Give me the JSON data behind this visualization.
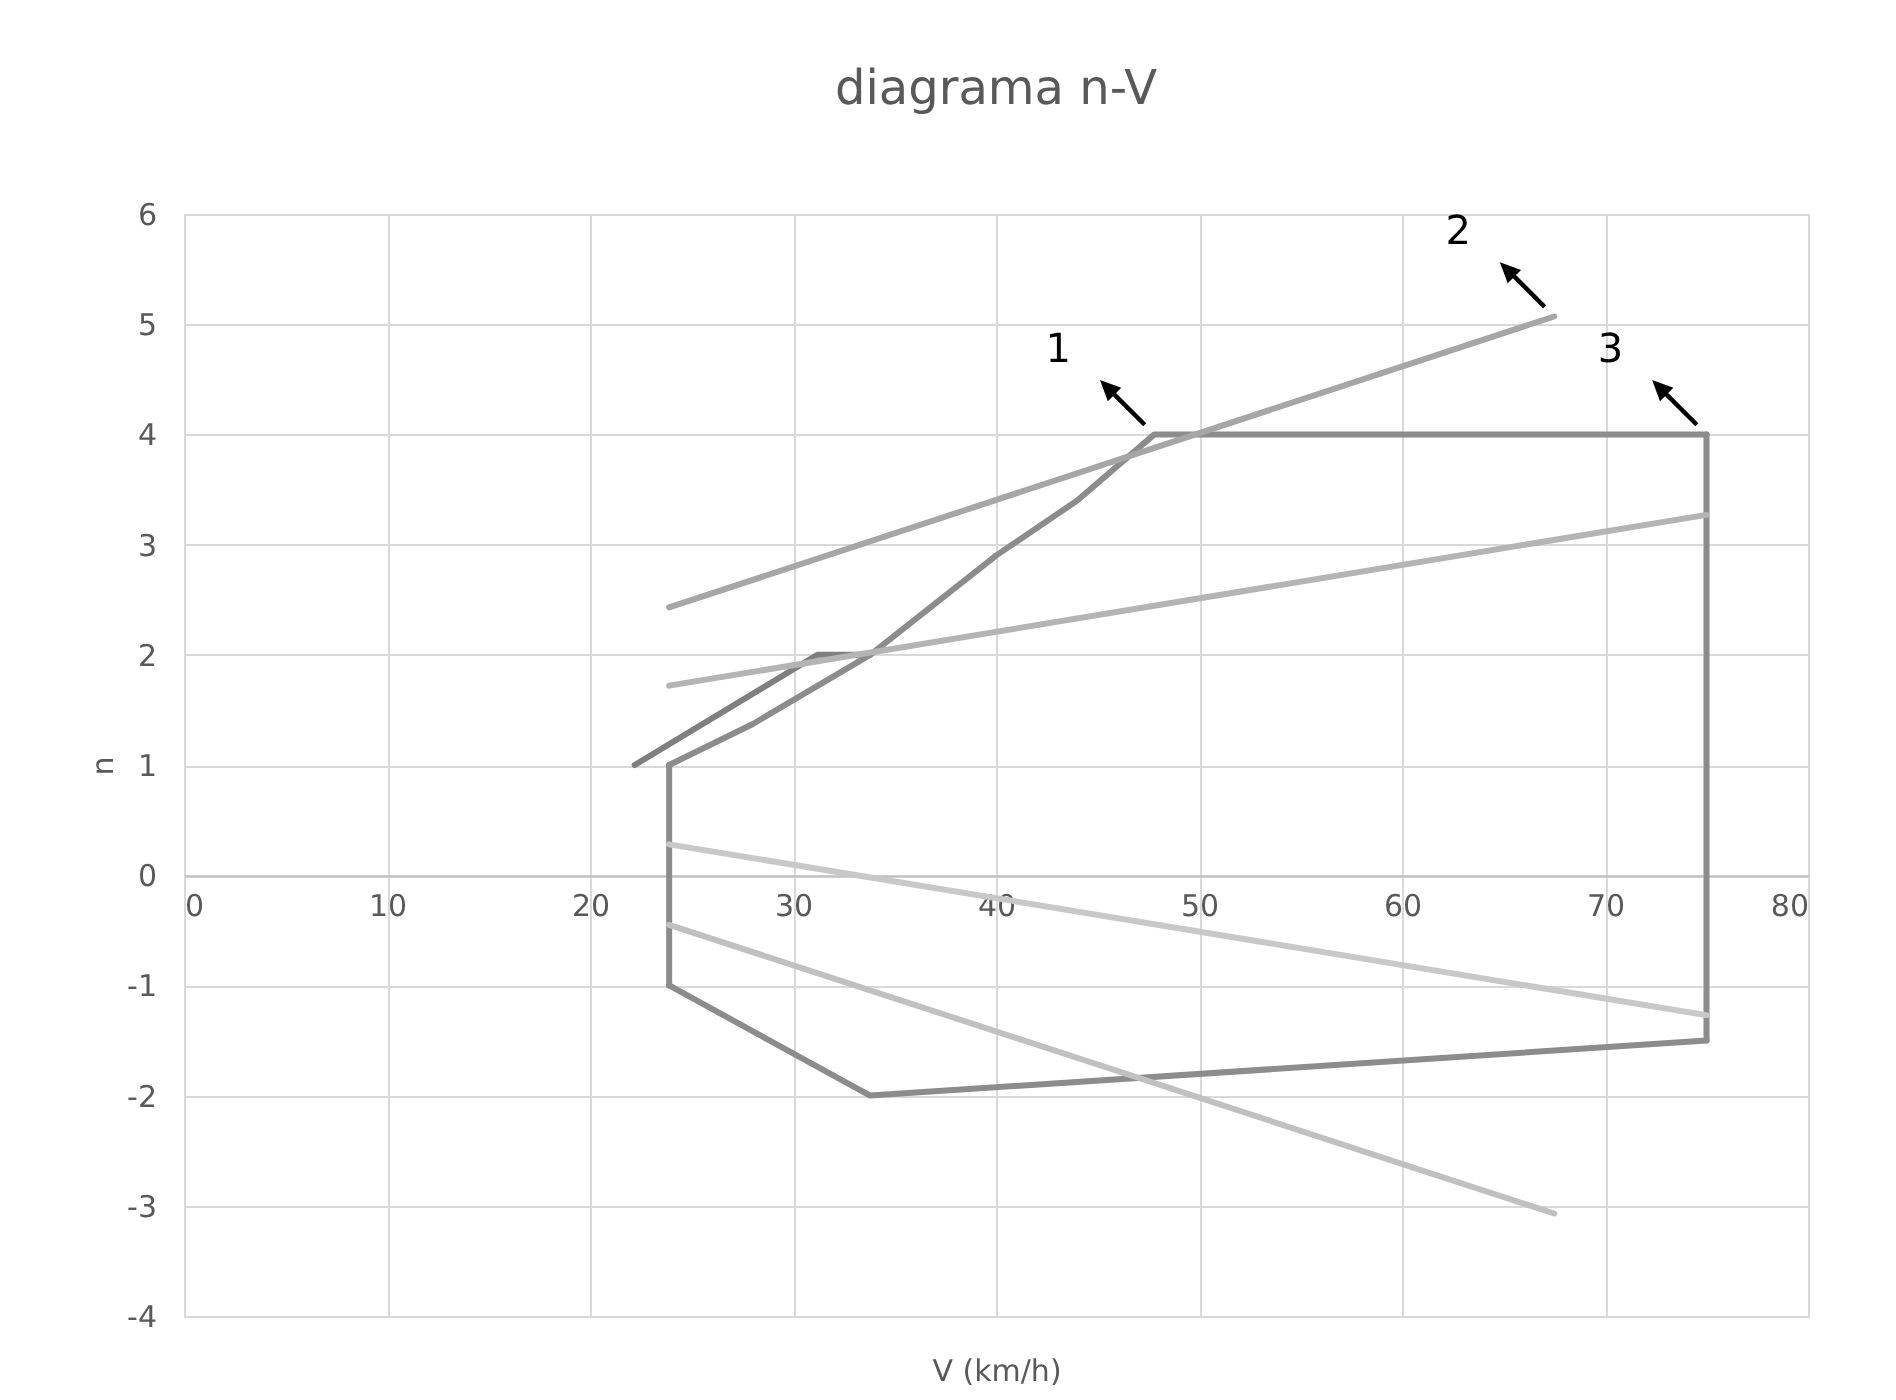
{
  "chart_data": {
    "type": "line",
    "title": "diagrama n-V",
    "xlabel": "V (km/h)",
    "ylabel": "n",
    "xlim": [
      0,
      80
    ],
    "xticks": [
      0,
      10,
      20,
      30,
      40,
      50,
      60,
      70,
      80
    ],
    "ylim": [
      -4,
      6
    ],
    "yticks": [
      -4,
      -3,
      -2,
      -1,
      0,
      1,
      2,
      3,
      4,
      5,
      6
    ],
    "grid": true,
    "legend": false,
    "marker": "none",
    "line_style": "solid",
    "series": [
      {
        "color": "#7f7f7f",
        "x": [
          22.2,
          31.2,
          33.8
        ],
        "values": [
          1,
          2,
          2
        ]
      },
      {
        "color": "#8c8c8c",
        "x": [
          23.9,
          28,
          33.8,
          40,
          44,
          47.8,
          75
        ],
        "values": [
          1,
          1.37,
          2,
          2.9,
          3.4,
          4,
          4
        ]
      },
      {
        "color": "#8c8c8c",
        "x": [
          75,
          75
        ],
        "values": [
          4,
          -1.5
        ]
      },
      {
        "color": "#8c8c8c",
        "x": [
          23.9,
          33.8,
          75
        ],
        "values": [
          -1,
          -2,
          -1.5
        ]
      },
      {
        "color": "#8c8c8c",
        "x": [
          23.9,
          23.9
        ],
        "values": [
          -1,
          1
        ]
      },
      {
        "color": "#a6a6a6",
        "x": [
          23.9,
          67.5
        ],
        "values": [
          2.43,
          5.07
        ]
      },
      {
        "color": "#b4b4b4",
        "x": [
          23.9,
          75
        ],
        "values": [
          1.72,
          3.27
        ]
      },
      {
        "color": "#c8c8c8",
        "x": [
          23.9,
          75
        ],
        "values": [
          0.28,
          -1.27
        ]
      },
      {
        "color": "#c0c0c0",
        "x": [
          23.9,
          67.5
        ],
        "values": [
          -0.45,
          -3.07
        ]
      }
    ],
    "annotations": [
      {
        "text": "1",
        "x": 47.8,
        "y": 4
      },
      {
        "text": "2",
        "x": 67.5,
        "y": 5.07
      },
      {
        "text": "3",
        "x": 75,
        "y": 4
      }
    ]
  }
}
